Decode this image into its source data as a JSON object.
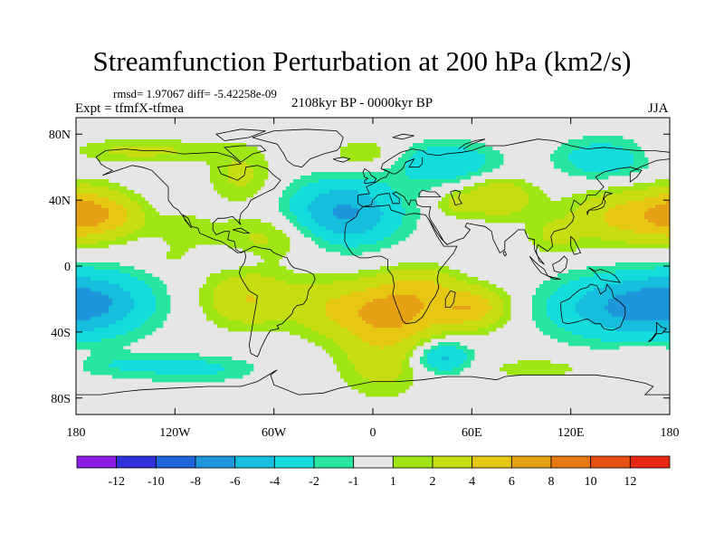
{
  "chart_data": {
    "type": "heatmap",
    "title": "Streamfunction Perturbation at 200 hPa (km2/s)",
    "stats": "rmsd= 1.97067 diff= -5.42258e-09",
    "experiment": "Expt = tfmfX-tfmea",
    "period": "2108kyr BP - 0000kyr BP",
    "season": "JJA",
    "xlim": [
      -180,
      180
    ],
    "ylim": [
      -90,
      90
    ],
    "x_ticks": [
      {
        "value": -180,
        "label": "180"
      },
      {
        "value": -120,
        "label": "120W"
      },
      {
        "value": -60,
        "label": "60W"
      },
      {
        "value": 0,
        "label": "0"
      },
      {
        "value": 60,
        "label": "60E"
      },
      {
        "value": 120,
        "label": "120E"
      },
      {
        "value": 180,
        "label": "180"
      }
    ],
    "y_ticks": [
      {
        "value": 80,
        "label": "80N"
      },
      {
        "value": 40,
        "label": "40N"
      },
      {
        "value": 0,
        "label": "0"
      },
      {
        "value": -40,
        "label": "40S"
      },
      {
        "value": -80,
        "label": "80S"
      }
    ],
    "colorbar": {
      "colors": [
        "#8c1ee6",
        "#3232dc",
        "#1e64dc",
        "#1e96dc",
        "#14bedc",
        "#14dcdc",
        "#28e6a0",
        "#e6e6e6",
        "#a0e614",
        "#c8dc14",
        "#e6c814",
        "#e6a014",
        "#e67814",
        "#e65014",
        "#e62814"
      ],
      "labels": [
        "-12",
        "-10",
        "-8",
        "-6",
        "-4",
        "-2",
        "-1",
        "1",
        "2",
        "4",
        "6",
        "8",
        "10",
        "12"
      ]
    },
    "anomalies": [
      {
        "lon": -140,
        "lat": 70,
        "sx": 32,
        "sy": 5,
        "amp": 2.5
      },
      {
        "lon": -80,
        "lat": 55,
        "sx": 14,
        "sy": 12,
        "amp": 2.4
      },
      {
        "lon": -172,
        "lat": 32,
        "sx": 14,
        "sy": 11,
        "amp": 4.6
      },
      {
        "lon": -150,
        "lat": 30,
        "sx": 12,
        "sy": 9,
        "amp": 2.2
      },
      {
        "lon": -115,
        "lat": 22,
        "sx": 12,
        "sy": 7,
        "amp": 1.8
      },
      {
        "lon": -62,
        "lat": 18,
        "sx": 22,
        "sy": 10,
        "amp": 2.6
      },
      {
        "lon": -90,
        "lat": 5,
        "sx": 14,
        "sy": 4,
        "amp": -1.6
      },
      {
        "lon": -18,
        "lat": 32,
        "sx": 24,
        "sy": 14,
        "amp": -6.5
      },
      {
        "lon": 45,
        "lat": 62,
        "sx": 22,
        "sy": 9,
        "amp": -4.0
      },
      {
        "lon": -5,
        "lat": 68,
        "sx": 14,
        "sy": 6,
        "amp": 2.2
      },
      {
        "lon": 75,
        "lat": 42,
        "sx": 16,
        "sy": 9,
        "amp": 4.0
      },
      {
        "lon": 48,
        "lat": 38,
        "sx": 8,
        "sy": 6,
        "amp": 1.8
      },
      {
        "lon": 140,
        "lat": 65,
        "sx": 20,
        "sy": 9,
        "amp": -3.5
      },
      {
        "lon": 158,
        "lat": 30,
        "sx": 26,
        "sy": 12,
        "amp": 5.0
      },
      {
        "lon": 110,
        "lat": 18,
        "sx": 12,
        "sy": 8,
        "amp": 2.0
      },
      {
        "lon": -168,
        "lat": -22,
        "sx": 26,
        "sy": 14,
        "amp": -4.8
      },
      {
        "lon": -120,
        "lat": 5,
        "sx": 18,
        "sy": 5,
        "amp": 1.2
      },
      {
        "lon": -75,
        "lat": -20,
        "sx": 20,
        "sy": 12,
        "amp": 4.0
      },
      {
        "lon": -30,
        "lat": -25,
        "sx": 16,
        "sy": 12,
        "amp": 2.0
      },
      {
        "lon": 10,
        "lat": -28,
        "sx": 24,
        "sy": 14,
        "amp": 6.8
      },
      {
        "lon": 60,
        "lat": -25,
        "sx": 16,
        "sy": 9,
        "amp": 5.2
      },
      {
        "lon": 30,
        "lat": -10,
        "sx": 14,
        "sy": 8,
        "amp": 2.2
      },
      {
        "lon": 5,
        "lat": -60,
        "sx": 18,
        "sy": 14,
        "amp": 2.6
      },
      {
        "lon": 42,
        "lat": -55,
        "sx": 12,
        "sy": 7,
        "amp": -4.8
      },
      {
        "lon": 150,
        "lat": -25,
        "sx": 32,
        "sy": 14,
        "amp": -5.5
      },
      {
        "lon": -110,
        "lat": -62,
        "sx": 28,
        "sy": 6,
        "amp": -2.6
      },
      {
        "lon": -160,
        "lat": -60,
        "sx": 18,
        "sy": 5,
        "amp": -1.4
      },
      {
        "lon": 100,
        "lat": -62,
        "sx": 24,
        "sy": 5,
        "amp": 1.6
      },
      {
        "lon": 165,
        "lat": -55,
        "sx": 14,
        "sy": 5,
        "amp": 1.4
      }
    ]
  }
}
